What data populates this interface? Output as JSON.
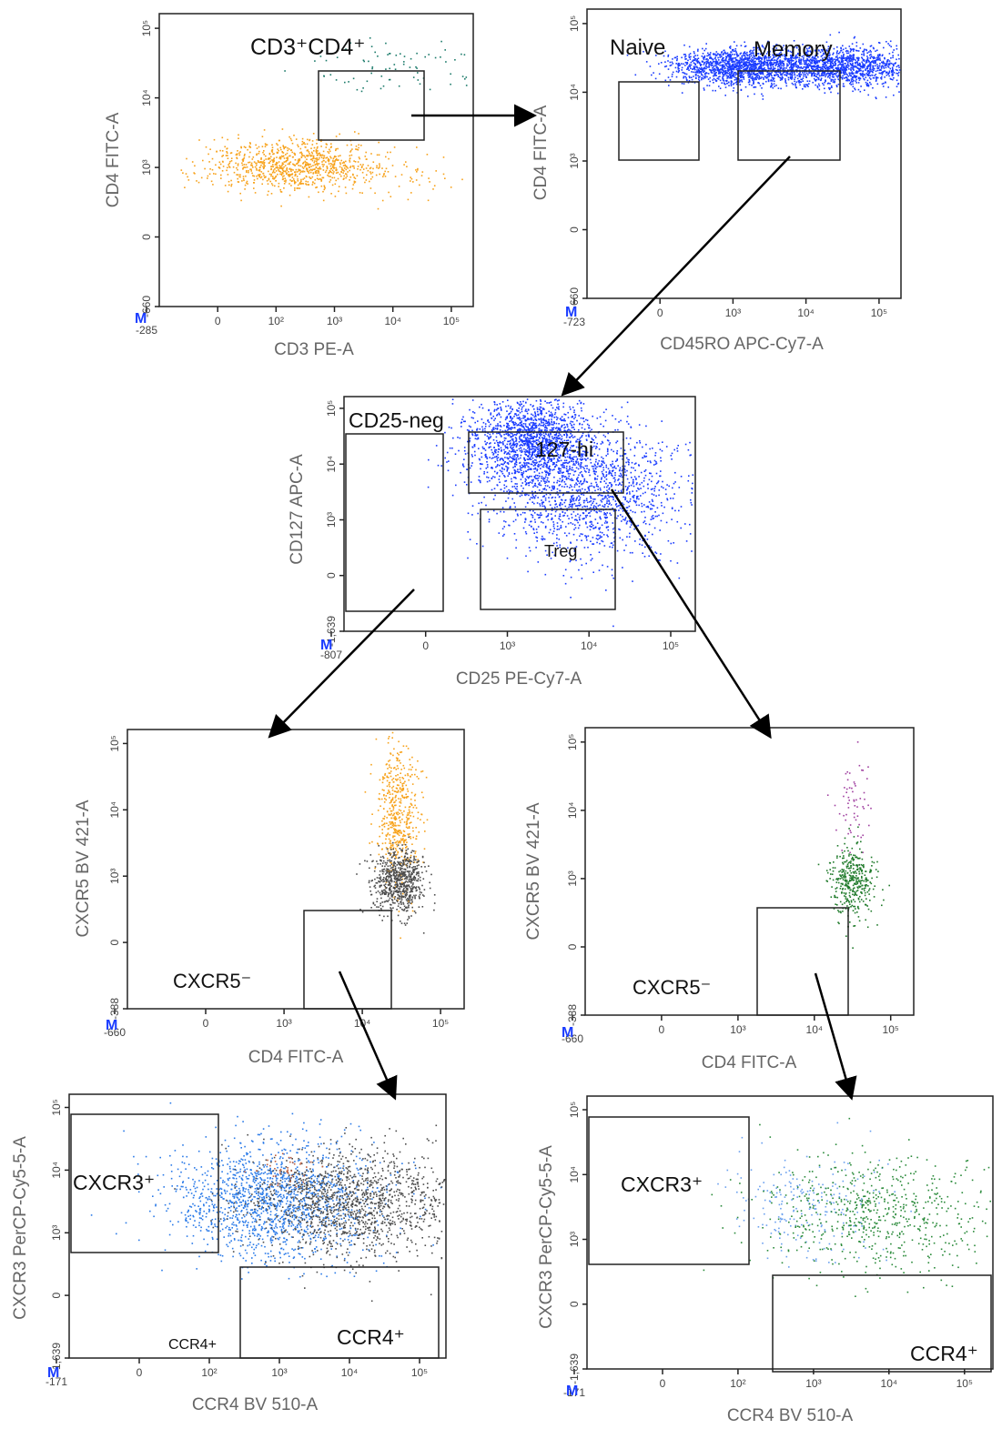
{
  "chart_data": [
    {
      "type": "scatter",
      "panel": "CD3 vs CD4",
      "xlabel": "CD3 PE-A",
      "ylabel": "CD4 FITC-A",
      "xlim": [
        -285,
        100000
      ],
      "ylim": [
        -660,
        100000
      ],
      "x_ticks": [
        "-285",
        "0",
        "10²",
        "10³",
        "10⁴",
        "10⁵"
      ],
      "y_ticks": [
        "-660",
        "0",
        "10³",
        "10⁴",
        "10⁵"
      ],
      "gates": [
        {
          "label": "CD3⁺CD4⁺"
        }
      ],
      "populations": [
        {
          "color": "#f7a21b",
          "clusters": [
            {
              "x": 60,
              "y": 90
            },
            {
              "x": 3000,
              "y": 60
            }
          ]
        },
        {
          "color": "#1b7a6a",
          "clusters": [
            {
              "x": 6000,
              "y": 8500
            }
          ]
        }
      ]
    },
    {
      "type": "scatter",
      "panel": "CD45RO vs CD4",
      "xlabel": "CD45RO APC-Cy7-A",
      "ylabel": "CD4 FITC-A",
      "xlim": [
        -723,
        100000
      ],
      "ylim": [
        -660,
        100000
      ],
      "x_ticks": [
        "-723",
        "0",
        "10³",
        "10⁴",
        "10⁵"
      ],
      "y_ticks": [
        "-660",
        "0",
        "10³",
        "10⁴",
        "10⁵"
      ],
      "gates": [
        {
          "label": "Naive"
        },
        {
          "label": "Memory"
        }
      ],
      "populations": [
        {
          "color": "#1a3cff",
          "clusters": [
            {
              "x": 80,
              "y": 7000
            },
            {
              "x": 8000,
              "y": 7000
            }
          ]
        }
      ]
    },
    {
      "type": "scatter",
      "panel": "CD25 vs CD127",
      "xlabel": "CD25 PE-Cy7-A",
      "ylabel": "CD127 APC-A",
      "xlim": [
        -807,
        100000
      ],
      "ylim": [
        -1639,
        100000
      ],
      "x_ticks": [
        "-807",
        "0",
        "10³",
        "10⁴",
        "10⁵"
      ],
      "y_ticks": [
        "-1,639",
        "0",
        "10³",
        "10⁴",
        "10⁵"
      ],
      "gates": [
        {
          "label": "CD25-neg"
        },
        {
          "label": "127-hi"
        },
        {
          "label": "Treg"
        }
      ],
      "populations": [
        {
          "color": "#1a3cff",
          "clusters": [
            {
              "x": 150,
              "y": 7000
            },
            {
              "x": 1500,
              "y": 300
            }
          ]
        }
      ]
    },
    {
      "type": "scatter",
      "panel": "CD4 vs CXCR5 (left)",
      "xlabel": "CD4 FITC-A",
      "ylabel": "CXCR5 BV 421-A",
      "xlim": [
        -660,
        100000
      ],
      "ylim": [
        -388,
        100000
      ],
      "x_ticks": [
        "-660",
        "0",
        "10³",
        "10⁴",
        "10⁵"
      ],
      "y_ticks": [
        "-388",
        "0",
        "10³",
        "10⁴",
        "10⁵"
      ],
      "gates": [
        {
          "label": "CXCR5⁻"
        }
      ],
      "populations": [
        {
          "color": "#f7a21b",
          "clusters": [
            {
              "x": 7000,
              "y": 2000
            }
          ]
        },
        {
          "color": "#4d4d4d",
          "clusters": [
            {
              "x": 7000,
              "y": 80
            }
          ]
        }
      ]
    },
    {
      "type": "scatter",
      "panel": "CD4 vs CXCR5 (right)",
      "xlabel": "CD4 FITC-A",
      "ylabel": "CXCR5 BV 421-A",
      "xlim": [
        -660,
        100000
      ],
      "ylim": [
        -388,
        100000
      ],
      "x_ticks": [
        "-660",
        "0",
        "10³",
        "10⁴",
        "10⁵"
      ],
      "y_ticks": [
        "-388",
        "0",
        "10³",
        "10⁴",
        "10⁵"
      ],
      "gates": [
        {
          "label": "CXCR5⁻"
        }
      ],
      "populations": [
        {
          "color": "#a040a0",
          "clusters": [
            {
              "x": 8000,
              "y": 3000
            }
          ]
        },
        {
          "color": "#1f7a2a",
          "clusters": [
            {
              "x": 8000,
              "y": 100
            }
          ]
        }
      ]
    },
    {
      "type": "scatter",
      "panel": "CCR4 vs CXCR3 (left)",
      "xlabel": "CCR4 BV 510-A",
      "ylabel": "CXCR3 PerCP-Cy5-5-A",
      "xlim": [
        -171,
        100000
      ],
      "ylim": [
        -1639,
        100000
      ],
      "x_ticks": [
        "-171",
        "0",
        "10²",
        "10³",
        "10⁴",
        "10⁵"
      ],
      "y_ticks": [
        "-1,639",
        "0",
        "10³",
        "10⁴",
        "10⁵"
      ],
      "gates": [
        {
          "label": "CXCR3⁺"
        },
        {
          "label": "CCR4⁺"
        }
      ],
      "annotations": [
        "CCR4+"
      ],
      "populations": [
        {
          "color": "#2a7ae8",
          "clusters": [
            {
              "x": 400,
              "y": 300
            }
          ]
        },
        {
          "color": "#4d4d4d",
          "clusters": [
            {
              "x": 5000,
              "y": 300
            }
          ]
        },
        {
          "color": "#c06040",
          "clusters": [
            {
              "x": 500,
              "y": 1500
            }
          ]
        }
      ]
    },
    {
      "type": "scatter",
      "panel": "CCR4 vs CXCR3 (right)",
      "xlabel": "CCR4 BV 510-A",
      "ylabel": "CXCR3 PerCP-Cy5-5-A",
      "xlim": [
        -171,
        100000
      ],
      "ylim": [
        -1639,
        100000
      ],
      "x_ticks": [
        "-171",
        "0",
        "10²",
        "10³",
        "10⁴",
        "10⁵"
      ],
      "y_ticks": [
        "-1,639",
        "0",
        "10³",
        "10⁴",
        "10⁵"
      ],
      "gates": [
        {
          "label": "CXCR3⁺"
        },
        {
          "label": "CCR4⁺"
        }
      ],
      "populations": [
        {
          "color": "#6aa0ee",
          "clusters": [
            {
              "x": 400,
              "y": 300
            }
          ]
        },
        {
          "color": "#2a8a3a",
          "clusters": [
            {
              "x": 3000,
              "y": 200
            }
          ]
        }
      ]
    }
  ],
  "axis_marker": "M"
}
